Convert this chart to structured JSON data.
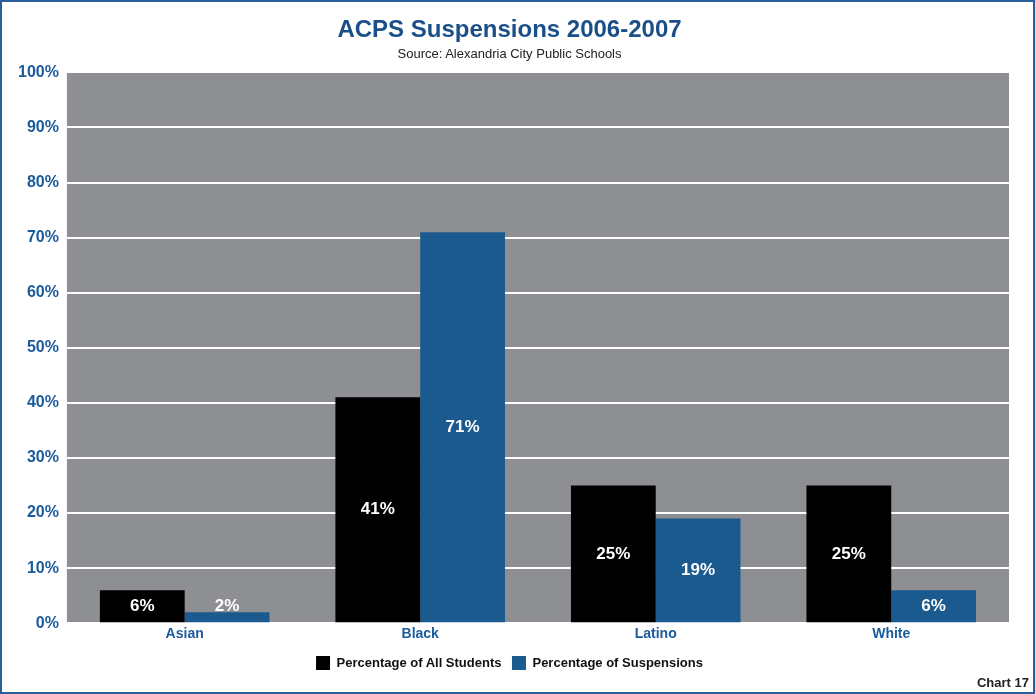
{
  "chart_data": {
    "type": "bar",
    "title": "ACPS Suspensions 2006-2007",
    "subtitle": "Source: Alexandria City Public Schools",
    "categories": [
      "Asian",
      "Black",
      "Latino",
      "White"
    ],
    "series": [
      {
        "name": "Percentage of All Students",
        "color": "#000000",
        "values": [
          6,
          41,
          25,
          25
        ],
        "value_labels": [
          "6%",
          "41%",
          "25%",
          "25%"
        ]
      },
      {
        "name": "Percentage of Suspensions",
        "color": "#1a5a8e",
        "values": [
          2,
          71,
          19,
          6
        ],
        "value_labels": [
          "2%",
          "71%",
          "19%",
          "6%"
        ]
      }
    ],
    "ylim": [
      0,
      100
    ],
    "yticks": [
      {
        "value": 0,
        "label": "0%"
      },
      {
        "value": 10,
        "label": "10%"
      },
      {
        "value": 20,
        "label": "20%"
      },
      {
        "value": 30,
        "label": "30%"
      },
      {
        "value": 40,
        "label": "40%"
      },
      {
        "value": 50,
        "label": "50%"
      },
      {
        "value": 60,
        "label": "60%"
      },
      {
        "value": 70,
        "label": "70%"
      },
      {
        "value": 80,
        "label": "80%"
      },
      {
        "value": 90,
        "label": "90%"
      },
      {
        "value": 100,
        "label": "100%"
      }
    ],
    "grid": "y",
    "legend": "bottom",
    "annotations": [
      "Chart 17"
    ]
  }
}
